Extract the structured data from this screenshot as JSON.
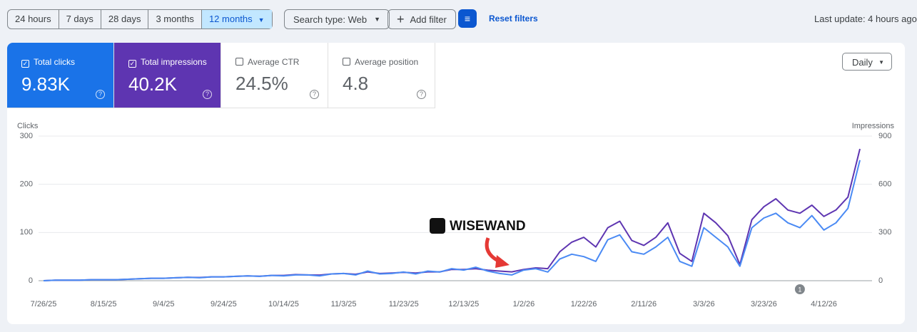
{
  "toolbar": {
    "ranges": [
      "24 hours",
      "7 days",
      "28 days",
      "3 months",
      "12 months"
    ],
    "selected_range": 4,
    "search_type": "Search type: Web",
    "add_filter": "Add filter",
    "reset": "Reset filters",
    "last_update": "Last update: 4 hours ago"
  },
  "metrics": [
    {
      "label": "Total clicks",
      "value": "9.83K",
      "checked": true,
      "color": "#1a73e8"
    },
    {
      "label": "Total impressions",
      "value": "40.2K",
      "checked": true,
      "color": "#5e35b1"
    },
    {
      "label": "Average CTR",
      "value": "24.5%",
      "checked": false,
      "color": "#ffffff"
    },
    {
      "label": "Average position",
      "value": "4.8",
      "checked": false,
      "color": "#ffffff"
    }
  ],
  "granularity": "Daily",
  "watermark": "WISEWAND",
  "chart_data": {
    "type": "line",
    "x": [
      "7/26/25",
      "7/30/25",
      "8/3/25",
      "8/7/25",
      "8/11/25",
      "8/15/25",
      "8/19/25",
      "8/23/25",
      "8/27/25",
      "8/31/25",
      "9/4/25",
      "9/8/25",
      "9/12/25",
      "9/16/25",
      "9/20/25",
      "9/24/25",
      "9/28/25",
      "10/2/25",
      "10/6/25",
      "10/10/25",
      "10/14/25",
      "10/18/25",
      "10/22/25",
      "10/26/25",
      "10/30/25",
      "11/3/25",
      "11/7/25",
      "11/11/25",
      "11/15/25",
      "11/19/25",
      "11/23/25",
      "11/27/25",
      "12/1/25",
      "12/5/25",
      "12/9/25",
      "12/13/25",
      "12/17/25",
      "12/21/25",
      "12/25/25",
      "12/29/25",
      "1/2/26",
      "1/6/26",
      "1/10/26",
      "1/14/26",
      "1/18/26",
      "1/22/26",
      "1/26/26",
      "1/30/26",
      "2/3/26",
      "2/7/26",
      "2/11/26",
      "2/15/26",
      "2/19/26",
      "2/23/26",
      "2/27/26",
      "3/3/26",
      "3/7/26",
      "3/11/26",
      "3/15/26",
      "3/19/26",
      "3/23/26",
      "3/27/26",
      "3/31/26",
      "4/4/26",
      "4/8/26",
      "4/12/26",
      "4/16/26",
      "4/20/26",
      "4/24/26"
    ],
    "xticks": [
      "7/26/25",
      "8/15/25",
      "9/4/25",
      "9/24/25",
      "10/14/25",
      "11/3/25",
      "11/23/25",
      "12/13/25",
      "1/2/26",
      "1/22/26",
      "2/11/26",
      "3/3/26",
      "3/23/26",
      "4/12/26"
    ],
    "ylim": [
      0,
      300
    ],
    "yticks": [
      0,
      100,
      200,
      300
    ],
    "y2lim": [
      0,
      900
    ],
    "y2ticks": [
      0,
      300,
      600,
      900
    ],
    "grid": true,
    "series": [
      {
        "name": "Clicks",
        "color": "#4a8af4",
        "values": [
          0,
          1,
          1,
          1,
          2,
          2,
          2,
          3,
          4,
          5,
          5,
          6,
          7,
          6,
          8,
          8,
          9,
          10,
          9,
          11,
          10,
          12,
          12,
          10,
          14,
          15,
          12,
          20,
          14,
          15,
          18,
          14,
          20,
          18,
          25,
          22,
          28,
          20,
          15,
          12,
          22,
          25,
          18,
          45,
          55,
          50,
          40,
          85,
          95,
          60,
          55,
          70,
          90,
          40,
          30,
          110,
          90,
          70,
          30,
          110,
          130,
          140,
          120,
          110,
          135,
          105,
          120,
          150,
          250
        ]
      },
      {
        "name": "Impressions",
        "color": "#5e35b1",
        "axis": "y2",
        "values": [
          0,
          3,
          3,
          3,
          6,
          6,
          6,
          9,
          12,
          15,
          15,
          18,
          21,
          20,
          24,
          24,
          27,
          30,
          28,
          33,
          33,
          38,
          36,
          35,
          42,
          45,
          40,
          55,
          45,
          48,
          52,
          48,
          55,
          55,
          70,
          70,
          75,
          65,
          60,
          55,
          70,
          80,
          75,
          180,
          240,
          270,
          210,
          330,
          370,
          250,
          220,
          270,
          360,
          170,
          120,
          420,
          360,
          280,
          100,
          380,
          460,
          510,
          440,
          420,
          470,
          400,
          440,
          520,
          820
        ]
      }
    ],
    "annotations": [
      {
        "x": "4/4/26",
        "label": "1"
      }
    ]
  }
}
